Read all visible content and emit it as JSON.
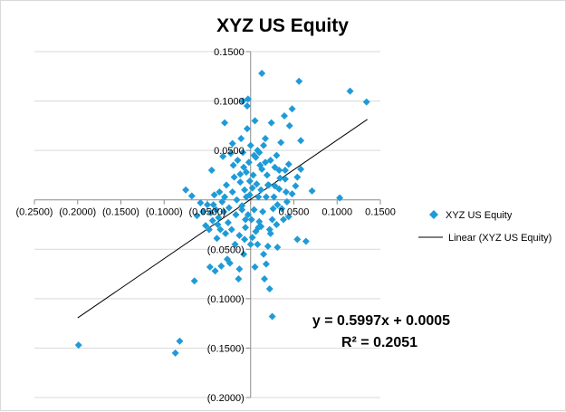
{
  "chart_data": {
    "type": "scatter",
    "title": "XYZ US Equity",
    "xlabel": "",
    "ylabel": "",
    "xlim": [
      -0.25,
      0.15
    ],
    "ylim": [
      -0.2,
      0.15
    ],
    "x_ticks": [
      -0.25,
      -0.2,
      -0.15,
      -0.1,
      -0.05,
      0.0,
      0.05,
      0.1,
      0.15
    ],
    "x_tick_labels": [
      "(0.2500)",
      "(0.2000)",
      "(0.1500)",
      "(0.1000)",
      "(0.0500)",
      "",
      "0.0500",
      "0.1000",
      "0.1500"
    ],
    "y_ticks": [
      0.15,
      0.1,
      0.05,
      0.0,
      -0.05,
      -0.1,
      -0.15,
      -0.2
    ],
    "y_tick_labels": [
      "0.1500",
      "0.1000",
      "0.0500",
      "",
      "(0.0500)",
      "(0.1000)",
      "(0.1500)",
      "(0.2000)"
    ],
    "grid": true,
    "legend_position": "right",
    "series": [
      {
        "name": "XYZ US Equity",
        "color": "#1f9bd7",
        "marker": "diamond",
        "points": [
          [
            0.134,
            0.099
          ],
          [
            0.115,
            0.11
          ],
          [
            0.103,
            0.002
          ],
          [
            0.071,
            0.009
          ],
          [
            0.056,
            0.12
          ],
          [
            0.058,
            0.06
          ],
          [
            0.058,
            0.031
          ],
          [
            0.054,
            0.023
          ],
          [
            0.052,
            0.014
          ],
          [
            0.048,
            0.092
          ],
          [
            0.044,
            0.036
          ],
          [
            0.064,
            -0.042
          ],
          [
            0.054,
            -0.04
          ],
          [
            0.048,
            0.006
          ],
          [
            0.044,
            -0.017
          ],
          [
            0.045,
            0.075
          ],
          [
            0.04,
            0.03
          ],
          [
            0.042,
            -0.002
          ],
          [
            0.04,
            0.021
          ],
          [
            0.038,
            -0.02
          ],
          [
            0.039,
            0.085
          ],
          [
            0.035,
            0.058
          ],
          [
            0.034,
            0.022
          ],
          [
            0.033,
            0.011
          ],
          [
            0.031,
            -0.005
          ],
          [
            0.03,
            0.045
          ],
          [
            0.03,
            -0.025
          ],
          [
            0.028,
            0.033
          ],
          [
            0.027,
            0.003
          ],
          [
            0.026,
            -0.009
          ],
          [
            0.025,
            -0.118
          ],
          [
            0.024,
            0.078
          ],
          [
            0.023,
            0.04
          ],
          [
            0.022,
            -0.03
          ],
          [
            0.021,
            0.015
          ],
          [
            0.02,
            -0.047
          ],
          [
            0.022,
            -0.09
          ],
          [
            0.019,
            0.025
          ],
          [
            0.018,
            0.003
          ],
          [
            0.017,
            0.062
          ],
          [
            0.016,
            -0.08
          ],
          [
            0.015,
            0.055
          ],
          [
            0.014,
            -0.012
          ],
          [
            0.013,
            0.128
          ],
          [
            0.012,
            0.01
          ],
          [
            0.011,
            0.035
          ],
          [
            0.01,
            -0.022
          ],
          [
            0.009,
            0.003
          ],
          [
            0.008,
            0.05
          ],
          [
            0.008,
            -0.045
          ],
          [
            0.007,
            0.016
          ],
          [
            0.006,
            -0.032
          ],
          [
            0.005,
            0.08
          ],
          [
            0.004,
            0.045
          ],
          [
            0.004,
            -0.01
          ],
          [
            0.003,
            0.025
          ],
          [
            0.002,
            0.012
          ],
          [
            0.001,
            -0.02
          ],
          [
            0.0,
            0.055
          ],
          [
            0.0,
            -0.045
          ],
          [
            -0.001,
            0.005
          ],
          [
            -0.002,
            0.038
          ],
          [
            -0.003,
            -0.015
          ],
          [
            -0.003,
            0.102
          ],
          [
            -0.004,
            0.095
          ],
          [
            -0.004,
            0.072
          ],
          [
            -0.005,
            0.028
          ],
          [
            -0.005,
            0.003
          ],
          [
            -0.006,
            -0.02
          ],
          [
            -0.006,
            -0.028
          ],
          [
            -0.007,
            -0.04
          ],
          [
            -0.007,
            0.01
          ],
          [
            -0.008,
            0.033
          ],
          [
            -0.009,
            0.048
          ],
          [
            -0.009,
            0.1
          ],
          [
            -0.01,
            -0.01
          ],
          [
            -0.01,
            -0.006
          ],
          [
            -0.011,
            0.062
          ],
          [
            -0.012,
            0.018
          ],
          [
            -0.013,
            -0.036
          ],
          [
            -0.013,
            -0.07
          ],
          [
            -0.014,
            -0.08
          ],
          [
            -0.015,
            0.04
          ],
          [
            -0.016,
            0.0
          ],
          [
            -0.017,
            -0.015
          ],
          [
            -0.018,
            -0.045
          ],
          [
            -0.019,
            0.023
          ],
          [
            -0.02,
            0.035
          ],
          [
            -0.021,
            0.008
          ],
          [
            -0.022,
            -0.03
          ],
          [
            -0.023,
            0.047
          ],
          [
            -0.024,
            -0.064
          ],
          [
            -0.025,
            -0.008
          ],
          [
            -0.026,
            -0.023
          ],
          [
            -0.027,
            -0.06
          ],
          [
            -0.028,
            0.015
          ],
          [
            -0.029,
            -0.034
          ],
          [
            -0.03,
            0.003
          ],
          [
            -0.03,
            0.078
          ],
          [
            -0.031,
            -0.012
          ],
          [
            -0.032,
            0.044
          ],
          [
            -0.033,
            -0.002
          ],
          [
            -0.034,
            -0.067
          ],
          [
            -0.035,
            -0.03
          ],
          [
            -0.036,
            0.008
          ],
          [
            -0.037,
            -0.018
          ],
          [
            -0.038,
            -0.025
          ],
          [
            -0.039,
            -0.039
          ],
          [
            -0.04,
            -0.01
          ],
          [
            -0.041,
            -0.072
          ],
          [
            -0.042,
            0.005
          ],
          [
            -0.043,
            -0.005
          ],
          [
            -0.044,
            -0.021
          ],
          [
            -0.045,
            0.03
          ],
          [
            -0.046,
            -0.013
          ],
          [
            -0.047,
            -0.068
          ],
          [
            -0.048,
            -0.03
          ],
          [
            -0.05,
            -0.005
          ],
          [
            -0.052,
            -0.026
          ],
          [
            -0.055,
            -0.012
          ],
          [
            -0.058,
            -0.003
          ],
          [
            -0.062,
            -0.016
          ],
          [
            -0.065,
            -0.082
          ],
          [
            -0.068,
            0.004
          ],
          [
            -0.075,
            0.01
          ],
          [
            -0.082,
            -0.143
          ],
          [
            -0.087,
            -0.155
          ],
          [
            -0.199,
            -0.147
          ],
          [
            0.005,
            -0.068
          ],
          [
            0.018,
            -0.065
          ],
          [
            0.015,
            -0.055
          ],
          [
            0.012,
            -0.027
          ],
          [
            0.025,
            -0.02
          ],
          [
            0.031,
            -0.048
          ],
          [
            0.006,
            0.043
          ],
          [
            0.02,
            0.015
          ],
          [
            0.009,
            -0.028
          ],
          [
            -0.001,
            0.019
          ],
          [
            0.017,
            0.038
          ],
          [
            0.028,
            0.014
          ],
          [
            0.033,
            0.03
          ],
          [
            0.036,
            -0.009
          ],
          [
            0.041,
            0.008
          ],
          [
            -0.012,
            0.026
          ],
          [
            -0.021,
            0.057
          ],
          [
            0.01,
            0.048
          ],
          [
            0.013,
            0.031
          ],
          [
            -0.008,
            -0.055
          ],
          [
            0.023,
            -0.034
          ],
          [
            0.002,
            -0.038
          ]
        ]
      }
    ],
    "trendline": {
      "name": "Linear (XYZ US Equity)",
      "color": "#000000",
      "slope": 0.5997,
      "intercept": 0.0005,
      "x_range": [
        -0.2,
        0.135
      ]
    },
    "annotations": {
      "equation": "y = 0.5997x + 0.0005",
      "r_squared": "R² = 0.2051"
    }
  }
}
